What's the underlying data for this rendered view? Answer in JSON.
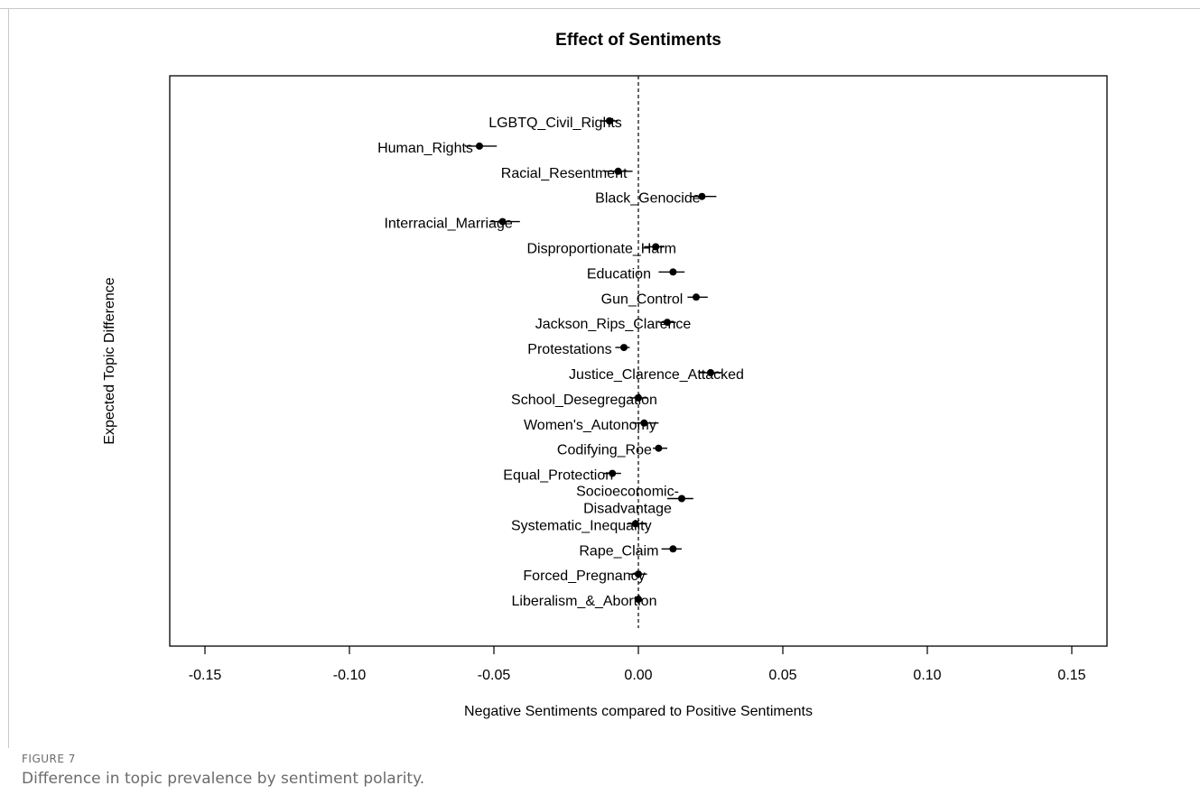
{
  "figure": {
    "label": "FIGURE 7",
    "caption": "Difference in topic prevalence by sentiment polarity."
  },
  "chart_data": {
    "type": "scatter",
    "subtype": "point-range (coefficient plot with confidence intervals)",
    "title": "Effect of Sentiments",
    "xlabel": "Negative Sentiments compared to Positive Sentiments",
    "ylabel": "Expected Topic Difference",
    "xlim": [
      -0.1625,
      0.1625
    ],
    "xticks": [
      -0.15,
      -0.1,
      -0.05,
      0.0,
      0.05,
      0.1,
      0.15
    ],
    "xtick_labels": [
      "-0.15",
      "-0.10",
      "-0.05",
      "0.00",
      "0.05",
      "0.10",
      "0.15"
    ],
    "reference_line": 0,
    "grid": false,
    "points": [
      {
        "label": "LGBTQ_Civil_Rights",
        "label_lines": [
          "LGBTQ_Civil_Rights"
        ],
        "estimate": -0.01,
        "ci": [
          -0.013,
          -0.007
        ]
      },
      {
        "label": "Human_Rights",
        "label_lines": [
          "Human_Rights"
        ],
        "estimate": -0.055,
        "ci": [
          -0.06,
          -0.049
        ]
      },
      {
        "label": "Racial_Resentment",
        "label_lines": [
          "Racial_Resentment"
        ],
        "estimate": -0.007,
        "ci": [
          -0.012,
          -0.002
        ]
      },
      {
        "label": "Black_Genocide",
        "label_lines": [
          "Black_Genocide"
        ],
        "estimate": 0.022,
        "ci": [
          0.018,
          0.027
        ]
      },
      {
        "label": "Interracial_Marriage",
        "label_lines": [
          "Interracial_Marriage"
        ],
        "estimate": -0.047,
        "ci": [
          -0.051,
          -0.041
        ]
      },
      {
        "label": "Disproportionate_Harm",
        "label_lines": [
          "Disproportionate_Harm"
        ],
        "estimate": 0.006,
        "ci": [
          0.002,
          0.009
        ]
      },
      {
        "label": "Education",
        "label_lines": [
          "Education"
        ],
        "estimate": 0.012,
        "ci": [
          0.007,
          0.016
        ]
      },
      {
        "label": "Gun_Control",
        "label_lines": [
          "Gun_Control"
        ],
        "estimate": 0.02,
        "ci": [
          0.017,
          0.024
        ]
      },
      {
        "label": "Jackson_Rips_Clarence",
        "label_lines": [
          "Jackson_Rips_Clarence"
        ],
        "estimate": 0.01,
        "ci": [
          0.007,
          0.013
        ]
      },
      {
        "label": "Protestations",
        "label_lines": [
          "Protestations"
        ],
        "estimate": -0.005,
        "ci": [
          -0.008,
          -0.003
        ]
      },
      {
        "label": "Justice_Clarence_Attacked",
        "label_lines": [
          "Justice_Clarence_Attacked"
        ],
        "estimate": 0.025,
        "ci": [
          0.021,
          0.029
        ]
      },
      {
        "label": "School_Desegregation",
        "label_lines": [
          "School_Desegregation"
        ],
        "estimate": 0.0,
        "ci": [
          -0.003,
          0.003
        ]
      },
      {
        "label": "Women's_Autonomy",
        "label_lines": [
          "Women's_Autonomy"
        ],
        "estimate": 0.002,
        "ci": [
          -0.002,
          0.007
        ]
      },
      {
        "label": "Codifying_Roe",
        "label_lines": [
          "Codifying_Roe"
        ],
        "estimate": 0.007,
        "ci": [
          0.005,
          0.01
        ]
      },
      {
        "label": "Equal_Protection",
        "label_lines": [
          "Equal_Protection"
        ],
        "estimate": -0.009,
        "ci": [
          -0.012,
          -0.006
        ]
      },
      {
        "label": "Socioeconomic-Disadvantage",
        "label_lines": [
          "Socioeconomic-",
          "Disadvantage"
        ],
        "estimate": 0.015,
        "ci": [
          0.01,
          0.019
        ]
      },
      {
        "label": "Systematic_Inequality",
        "label_lines": [
          "Systematic_Inequality"
        ],
        "estimate": -0.001,
        "ci": [
          -0.004,
          0.003
        ]
      },
      {
        "label": "Rape_Claim",
        "label_lines": [
          "Rape_Claim"
        ],
        "estimate": 0.012,
        "ci": [
          0.008,
          0.015
        ]
      },
      {
        "label": "Forced_Pregnancy",
        "label_lines": [
          "Forced_Pregnancy"
        ],
        "estimate": 0.0,
        "ci": [
          -0.003,
          0.003
        ]
      },
      {
        "label": "Liberalism_&_Abortion",
        "label_lines": [
          "Liberalism_&_Abortion"
        ],
        "estimate": 0.0,
        "ci": [
          -0.001,
          0.001
        ]
      }
    ]
  }
}
